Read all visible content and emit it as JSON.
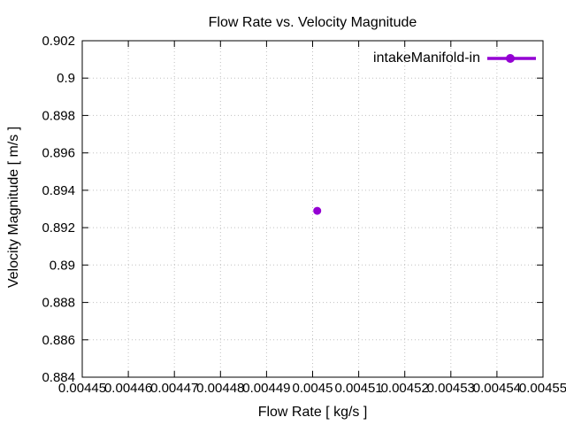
{
  "chart_data": {
    "type": "scatter",
    "title": "Flow Rate vs. Velocity Magnitude",
    "xlabel": "Flow Rate [ kg/s ]",
    "ylabel": "Velocity Magnitude [ m/s ]",
    "xlim": [
      0.00445,
      0.00455
    ],
    "ylim": [
      0.884,
      0.902
    ],
    "grid": true,
    "grid_style": "dotted",
    "legend_position": "top-right inside plot",
    "x_ticks": {
      "values": [
        0.00445,
        0.00446,
        0.00447,
        0.00448,
        0.00449,
        0.0045,
        0.00451,
        0.00452,
        0.00453,
        0.00454,
        0.00455
      ],
      "labels": [
        "0.00445",
        "0.00446",
        "0.00447",
        "0.00448",
        "0.00449",
        "0.0045",
        "0.00451",
        "0.00452",
        "0.00453",
        "0.00454",
        "0.00455"
      ]
    },
    "y_ticks": {
      "values": [
        0.884,
        0.886,
        0.888,
        0.89,
        0.892,
        0.894,
        0.896,
        0.898,
        0.9,
        0.902
      ],
      "labels": [
        "0.884",
        "0.886",
        "0.888",
        "0.89",
        "0.892",
        "0.894",
        "0.896",
        "0.898",
        "0.9",
        "0.902"
      ]
    },
    "series": [
      {
        "name": "intakeManifold-in",
        "color": "#9400d3",
        "marker": "filled-circle",
        "points": [
          {
            "x": 0.004501,
            "y": 0.8929
          }
        ]
      }
    ]
  },
  "colors": {
    "background": "#ffffff",
    "axis": "#000000",
    "text": "#000000",
    "grid": "#c0c0c0",
    "accent": "#9400d3"
  }
}
